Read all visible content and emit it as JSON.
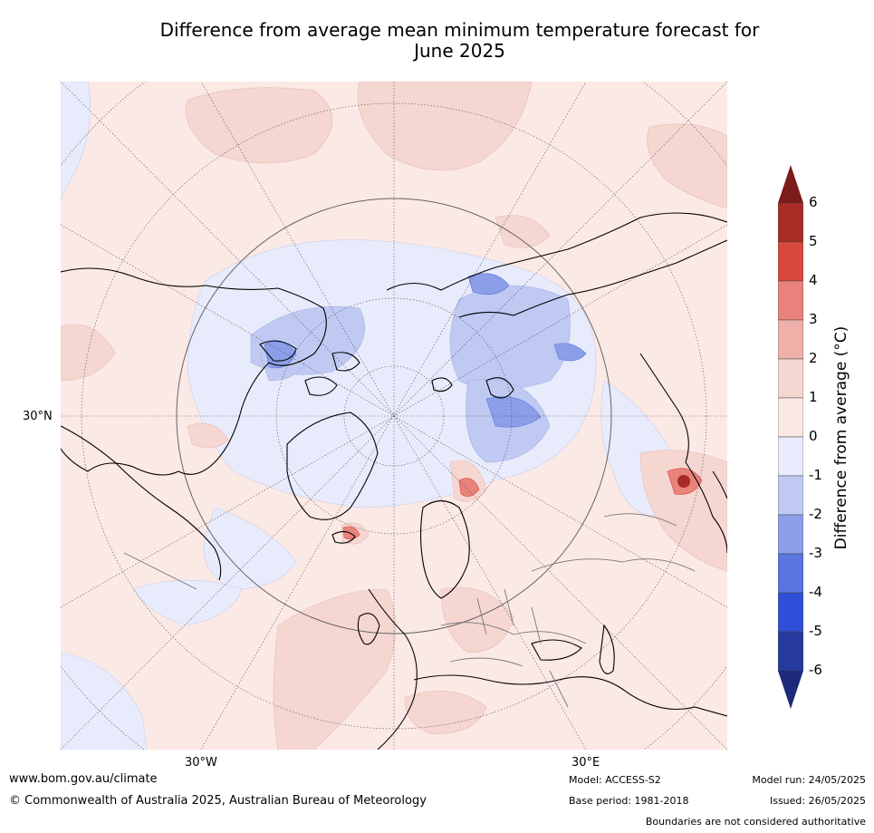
{
  "title_line1": "Difference from average mean minimum temperature forecast for",
  "title_line2": "June 2025",
  "map": {
    "projection": "north-polar-stereographic",
    "lat_label": "30°N",
    "lon_labels": [
      "30°W",
      "30°E"
    ],
    "background_color": "#fbe9e6"
  },
  "colorbar": {
    "title": "Difference from average (°C)",
    "ticks": [
      "6",
      "5",
      "4",
      "3",
      "2",
      "1",
      "0",
      "-1",
      "-2",
      "-3",
      "-4",
      "-5",
      "-6"
    ],
    "colors": [
      "#7b1c1a",
      "#a82b25",
      "#d9483d",
      "#e9827a",
      "#efb0a9",
      "#f5d6d1",
      "#fbe9e6",
      "#e8ebfb",
      "#c0c9f2",
      "#8c9ee8",
      "#5a74e0",
      "#304fd8",
      "#253a9c",
      "#1d2a7a"
    ]
  },
  "footer": {
    "website": "www.bom.gov.au/climate",
    "copyright": "© Commonwealth of Australia 2025, Australian Bureau of Meteorology",
    "model": "Model: ACCESS-S2",
    "base_period": "Base period: 1981-2018",
    "model_run": "Model run: 24/05/2025",
    "issued": "Issued: 26/05/2025",
    "disclaimer": "Boundaries are not considered authoritative"
  }
}
